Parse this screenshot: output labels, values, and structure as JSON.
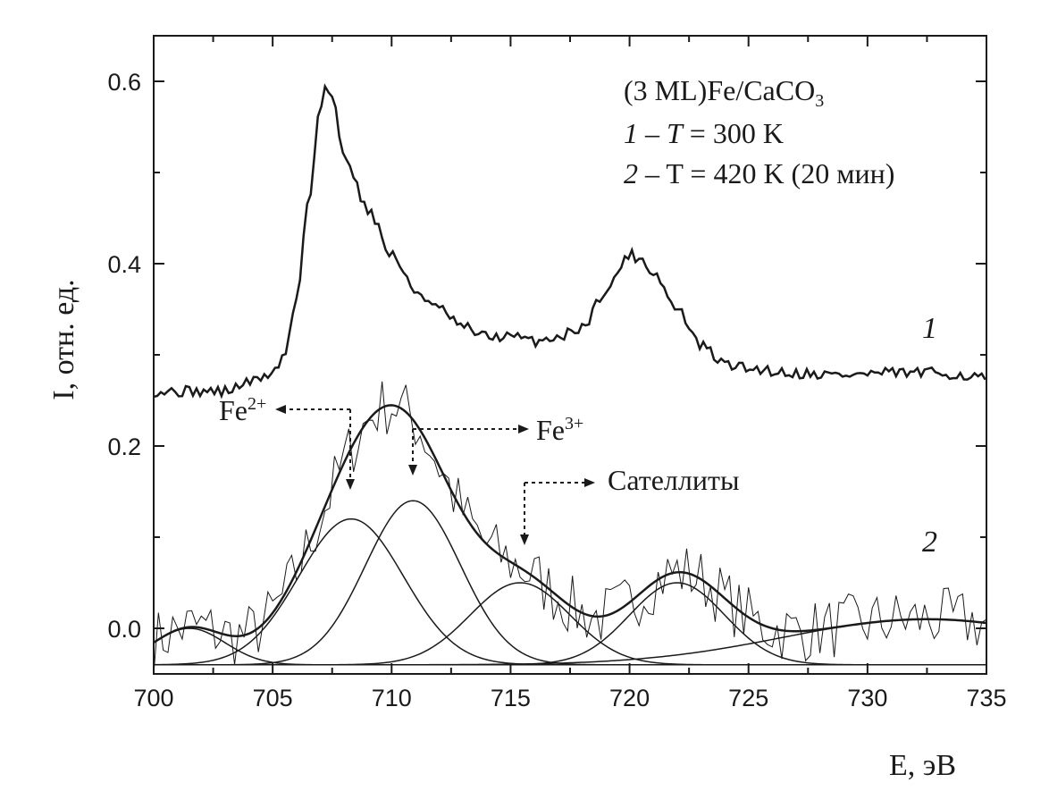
{
  "chart_data": {
    "type": "line",
    "xlabel": "E, эВ",
    "ylabel": "I, отн. ед.",
    "xlim": [
      700,
      735
    ],
    "ylim": [
      -0.05,
      0.65
    ],
    "x_ticks": [
      "700",
      "705",
      "710",
      "715",
      "720",
      "725",
      "730",
      "735"
    ],
    "y_ticks": [
      "0.0",
      "0.2",
      "0.4",
      "0.6"
    ],
    "grid": false,
    "legend": {
      "placement": "top-right",
      "sample": "(3 ML)Fe/CaCO",
      "sample_sub": "3",
      "line1": {
        "num": "1",
        "dash": " – ",
        "var": "T",
        "rest": " = 300 K"
      },
      "line2": {
        "num": "2",
        "rest": " – T = 420 K (20 мин)"
      }
    },
    "annotations": {
      "fe2_base": "Fe",
      "fe2_sup": "2+",
      "fe3_base": "Fe",
      "fe3_sup": "3+",
      "satellites": "Сателлиты"
    },
    "curve_labels": {
      "c1": "1",
      "c2": "2"
    },
    "baseline_y": -0.04,
    "series": [
      {
        "label": "1",
        "points": [
          [
            700,
            0.26
          ],
          [
            701,
            0.26
          ],
          [
            702,
            0.26
          ],
          [
            703,
            0.26
          ],
          [
            704,
            0.27
          ],
          [
            705,
            0.28
          ],
          [
            705.5,
            0.3
          ],
          [
            706,
            0.36
          ],
          [
            706.5,
            0.47
          ],
          [
            707,
            0.57
          ],
          [
            707.2,
            0.595
          ],
          [
            707.5,
            0.58
          ],
          [
            708,
            0.52
          ],
          [
            709,
            0.46
          ],
          [
            710,
            0.41
          ],
          [
            711,
            0.37
          ],
          [
            712,
            0.35
          ],
          [
            713,
            0.33
          ],
          [
            714,
            0.32
          ],
          [
            715,
            0.32
          ],
          [
            716,
            0.315
          ],
          [
            717,
            0.32
          ],
          [
            718,
            0.33
          ],
          [
            719,
            0.37
          ],
          [
            720,
            0.41
          ],
          [
            720.5,
            0.405
          ],
          [
            721,
            0.39
          ],
          [
            722,
            0.35
          ],
          [
            723,
            0.31
          ],
          [
            724,
            0.29
          ],
          [
            725,
            0.285
          ],
          [
            727,
            0.28
          ],
          [
            729,
            0.278
          ],
          [
            731,
            0.28
          ],
          [
            733,
            0.28
          ],
          [
            735,
            0.275
          ]
        ]
      },
      {
        "label": "2",
        "noise_amplitude": 0.035,
        "fit_envelope": true
      }
    ],
    "components": [
      {
        "center": 701.5,
        "amplitude": 0.04,
        "sigma": 1.5
      },
      {
        "center": 708.3,
        "amplitude": 0.16,
        "sigma": 2.2
      },
      {
        "center": 710.9,
        "amplitude": 0.18,
        "sigma": 2.0
      },
      {
        "center": 715.4,
        "amplitude": 0.09,
        "sigma": 2.1
      },
      {
        "center": 722.0,
        "amplitude": 0.09,
        "sigma": 2.0
      },
      {
        "center": 732.5,
        "amplitude": 0.05,
        "sigma": 6.0
      }
    ]
  }
}
